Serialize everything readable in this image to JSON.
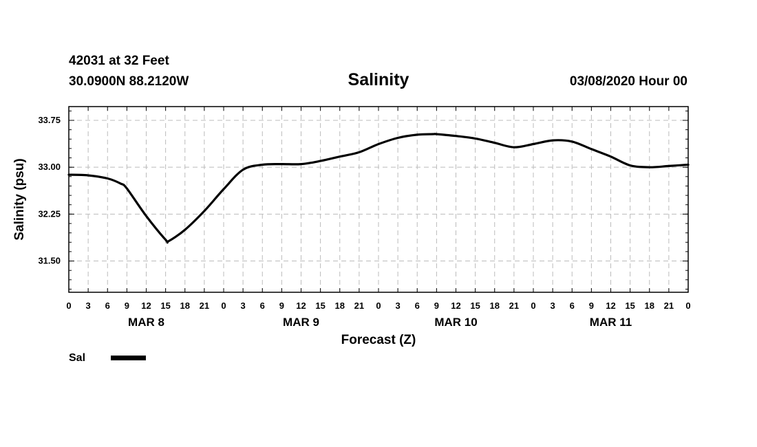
{
  "header": {
    "station": "42031 at 32 Feet",
    "location": "30.0900N 88.2120W",
    "title": "Salinity",
    "datetime": "03/08/2020 Hour 00"
  },
  "chart_data": {
    "type": "line",
    "title": "Salinity",
    "xlabel": "Forecast (Z)",
    "ylabel": "Salinity (psu)",
    "x_unit": "forecast hour from 03/08/2020 00Z",
    "xlim": [
      0,
      96
    ],
    "ylim": [
      31.0,
      33.97
    ],
    "grid": true,
    "y_ticks": [
      "33.75",
      "33.00",
      "32.25",
      "31.50"
    ],
    "y_tick_values": [
      33.75,
      33.0,
      32.25,
      31.5
    ],
    "x_tick_labels": [
      "0",
      "3",
      "6",
      "9",
      "12",
      "15",
      "18",
      "21",
      "0",
      "3",
      "6",
      "9",
      "12",
      "15",
      "18",
      "21",
      "0",
      "3",
      "6",
      "9",
      "12",
      "15",
      "18",
      "21",
      "0",
      "3",
      "6",
      "9",
      "12",
      "15",
      "18",
      "21",
      "0"
    ],
    "day_labels": [
      {
        "label": "MAR 8",
        "hour": 12
      },
      {
        "label": "MAR 9",
        "hour": 36
      },
      {
        "label": "MAR 10",
        "hour": 60
      },
      {
        "label": "MAR 11",
        "hour": 84
      }
    ],
    "legend": {
      "position": "bottom-left"
    },
    "series": [
      {
        "name": "Sal",
        "color": "#000000",
        "x": [
          0,
          3,
          6,
          8,
          9,
          12,
          15,
          15.5,
          18,
          21,
          24,
          27,
          30,
          33,
          36,
          39,
          42,
          45,
          48,
          51,
          54,
          57,
          56.5,
          60,
          63,
          66,
          69,
          72,
          75,
          78,
          81,
          84,
          87,
          90,
          93,
          96
        ],
        "y": [
          32.88,
          32.87,
          32.82,
          32.74,
          32.66,
          32.22,
          31.84,
          31.82,
          32.0,
          32.3,
          32.65,
          32.96,
          33.04,
          33.05,
          33.05,
          33.1,
          33.17,
          33.24,
          33.37,
          33.47,
          33.52,
          33.53,
          33.53,
          33.5,
          33.46,
          33.39,
          33.32,
          33.37,
          33.43,
          33.41,
          33.29,
          33.17,
          33.03,
          33.0,
          33.02,
          33.04
        ]
      }
    ]
  }
}
